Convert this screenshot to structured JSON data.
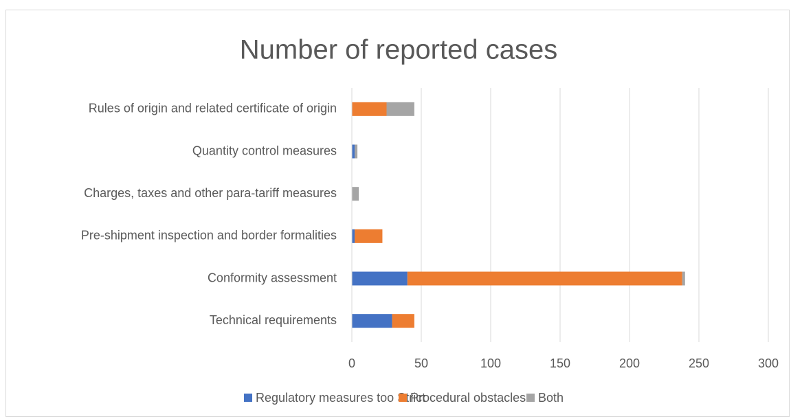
{
  "chart_data": {
    "type": "bar",
    "orientation": "horizontal",
    "stacked": true,
    "title": "Number of reported cases",
    "categories": [
      "Technical requirements",
      "Conformity assessment",
      "Pre-shipment inspection and border formalities",
      "Charges, taxes and other para-tariff measures",
      "Quantity control measures",
      "Rules of origin and related certificate of origin"
    ],
    "series": [
      {
        "name": "Regulatory measures too Strict",
        "color": "#4472c4",
        "values": [
          29,
          40,
          2,
          0,
          2,
          0
        ]
      },
      {
        "name": "Procedural obstacles",
        "color": "#ed7d31",
        "values": [
          16,
          198,
          20,
          0,
          0,
          25
        ]
      },
      {
        "name": "Both",
        "color": "#a5a5a5",
        "values": [
          0,
          2,
          0,
          5,
          2,
          20
        ]
      }
    ],
    "xlim": [
      0,
      300
    ],
    "xticks": [
      0,
      50,
      100,
      150,
      200,
      250,
      300
    ],
    "grid": true,
    "legend": "bottom"
  }
}
